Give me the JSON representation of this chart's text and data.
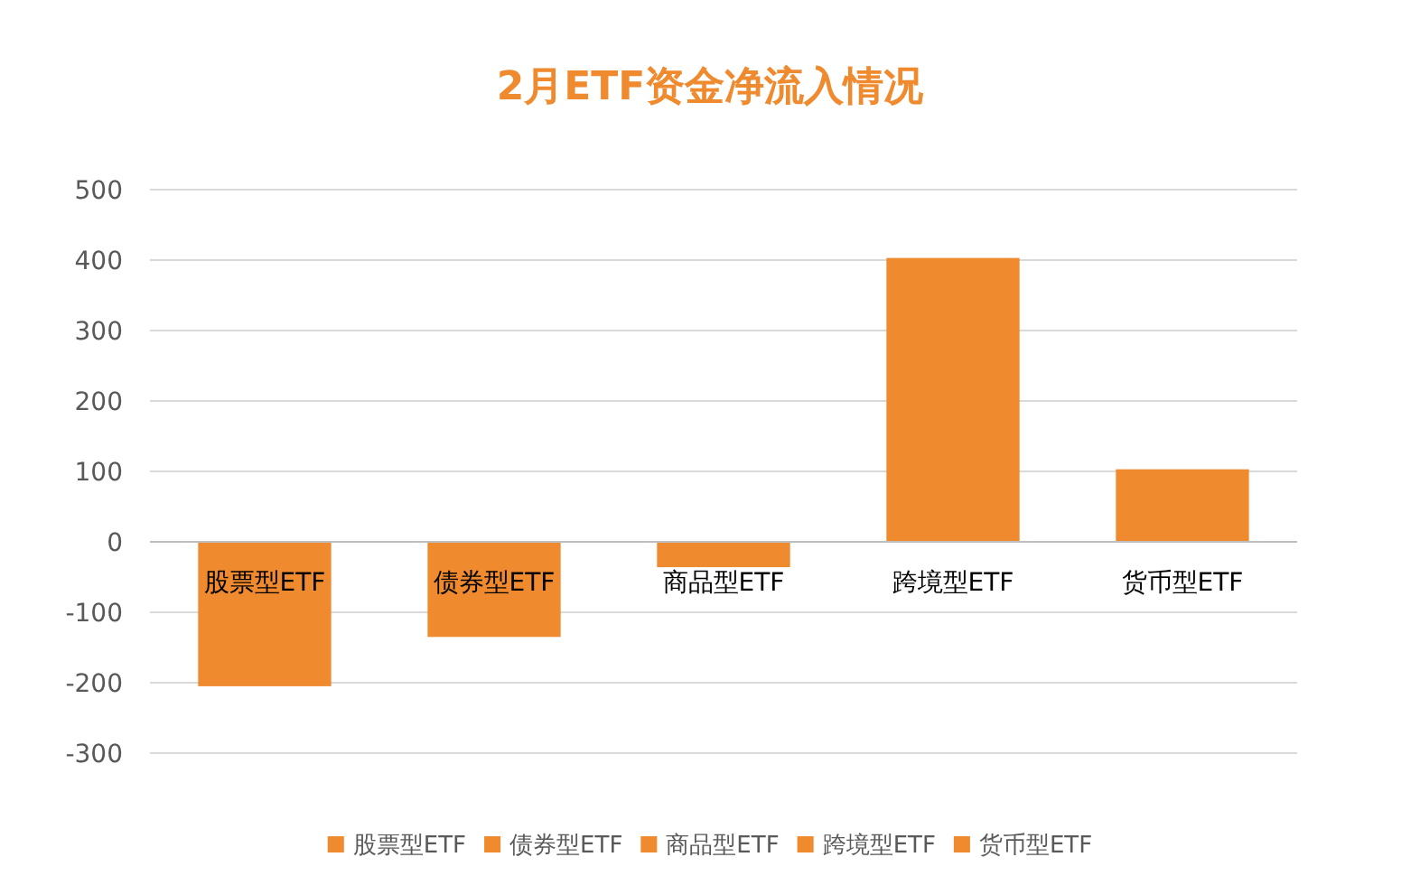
{
  "chart_data": {
    "type": "bar",
    "title": "2月ETF资金净流入情况",
    "categories": [
      "股票型ETF",
      "债券型ETF",
      "商品型ETF",
      "跨境型ETF",
      "货币型ETF"
    ],
    "series": [
      {
        "name": "股票型ETF",
        "color": "#f08a2e",
        "values": [
          -205,
          null,
          null,
          null,
          null
        ]
      },
      {
        "name": "债券型ETF",
        "color": "#f08a2e",
        "values": [
          null,
          -135,
          null,
          null,
          null
        ]
      },
      {
        "name": "商品型ETF",
        "color": "#f08a2e",
        "values": [
          null,
          null,
          -36,
          null,
          null
        ]
      },
      {
        "name": "跨境型ETF",
        "color": "#f08a2e",
        "values": [
          null,
          null,
          null,
          403,
          null
        ]
      },
      {
        "name": "货币型ETF",
        "color": "#f08a2e",
        "values": [
          null,
          null,
          null,
          null,
          103
        ]
      }
    ],
    "ylim": [
      -300,
      500
    ],
    "yticks": [
      -300,
      -200,
      -100,
      0,
      100,
      200,
      300,
      400,
      500
    ],
    "grid": "y",
    "legend": "bottom"
  }
}
